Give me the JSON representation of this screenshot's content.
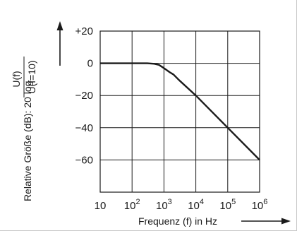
{
  "chart_data": {
    "type": "line",
    "xlabel": "Frequenz (f) in Hz",
    "ylabel": "Relative Größe (dB): 20 log",
    "ylabel_fraction": {
      "numerator": "U(f)",
      "denominator": "U(f=10)"
    },
    "x_scale": "log",
    "xlim": [
      10,
      1000000
    ],
    "ylim": [
      -80,
      20
    ],
    "grid": true,
    "x_ticks": [
      {
        "value": 10,
        "base": "10",
        "exp": ""
      },
      {
        "value": 100,
        "base": "10",
        "exp": "2"
      },
      {
        "value": 1000,
        "base": "10",
        "exp": "3"
      },
      {
        "value": 10000,
        "base": "10",
        "exp": "4"
      },
      {
        "value": 100000,
        "base": "10",
        "exp": "5"
      },
      {
        "value": 1000000,
        "base": "10",
        "exp": "6"
      }
    ],
    "y_ticks": [
      {
        "value": 20,
        "label": "+20"
      },
      {
        "value": 0,
        "label": "0"
      },
      {
        "value": -20,
        "label": "−20"
      },
      {
        "value": -40,
        "label": "−40"
      },
      {
        "value": -60,
        "label": "−60"
      }
    ],
    "series": [
      {
        "x": [
          10,
          100,
          300,
          500,
          700,
          1000,
          1500,
          2000,
          3000,
          10000,
          100000,
          1000000
        ],
        "y": [
          0,
          0,
          0,
          -0.3,
          -1,
          -3,
          -5.5,
          -7,
          -10.5,
          -20,
          -40,
          -60
        ]
      }
    ]
  }
}
